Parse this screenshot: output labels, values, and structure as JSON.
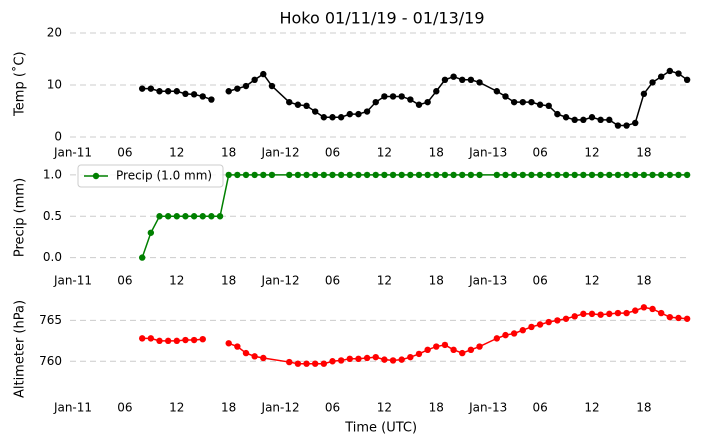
{
  "chart_data": [
    {
      "type": "line",
      "title": "Hoko 01/11/19 - 01/13/19",
      "ylabel": "Temp (˚C)",
      "xlim": [
        0,
        71.25
      ],
      "xticks": [
        {
          "value": 0,
          "label": "Jan-11"
        },
        {
          "value": 6,
          "label": "06"
        },
        12,
        18,
        {
          "value": 24,
          "label": "Jan-12"
        },
        {
          "value": 30,
          "label": "06"
        },
        {
          "value": 36,
          "label": "12"
        },
        {
          "value": 42,
          "label": "18"
        },
        {
          "value": 48,
          "label": "Jan-13"
        },
        {
          "value": 54,
          "label": "06"
        },
        {
          "value": 60,
          "label": "12"
        },
        {
          "value": 66,
          "label": "18"
        }
      ],
      "ylim": [
        0,
        20.5
      ],
      "yticks": [
        0,
        10,
        20
      ],
      "grid": true,
      "series": [
        {
          "name": "Temp",
          "color": "#000000",
          "x": [
            8,
            9,
            10,
            11,
            12,
            13,
            14,
            15,
            16,
            17,
            18,
            19,
            20,
            21,
            22,
            23,
            25,
            26,
            27,
            28,
            29,
            30,
            31,
            32,
            33,
            34,
            35,
            36,
            37,
            38,
            39,
            40,
            41,
            42,
            43,
            44,
            45,
            46,
            47,
            49,
            50,
            51,
            52,
            53,
            54,
            55,
            56,
            57,
            58,
            59,
            60,
            61,
            62,
            63,
            64,
            65,
            66,
            67,
            68,
            69,
            70,
            71
          ],
          "values": [
            9.3,
            9.3,
            8.8,
            8.8,
            8.8,
            8.3,
            8.2,
            7.8,
            7.2,
            null,
            8.8,
            9.3,
            9.8,
            11.0,
            12.1,
            9.8,
            6.7,
            6.2,
            6.0,
            4.9,
            3.8,
            3.8,
            3.8,
            4.4,
            4.4,
            4.9,
            6.7,
            7.8,
            7.8,
            7.8,
            7.2,
            6.2,
            6.7,
            8.8,
            11.0,
            11.6,
            11.0,
            11.0,
            10.5,
            8.8,
            7.8,
            6.7,
            6.7,
            6.7,
            6.2,
            6.0,
            4.4,
            3.8,
            3.3,
            3.3,
            3.8,
            3.3,
            3.3,
            2.2,
            2.2,
            2.7,
            8.3,
            10.5,
            11.6,
            12.7,
            12.2,
            11.0
          ]
        }
      ]
    },
    {
      "type": "line",
      "ylabel": "Precip (mm)",
      "legend": "upper left",
      "xlim": [
        0,
        71.25
      ],
      "xticks": [
        {
          "value": 0,
          "label": "Jan-11"
        },
        {
          "value": 6,
          "label": "06"
        },
        12,
        18,
        {
          "value": 24,
          "label": "Jan-12"
        },
        {
          "value": 30,
          "label": "06"
        },
        {
          "value": 36,
          "label": "12"
        },
        {
          "value": 42,
          "label": "18"
        },
        {
          "value": 48,
          "label": "Jan-13"
        },
        {
          "value": 54,
          "label": "06"
        },
        {
          "value": 60,
          "label": "12"
        },
        {
          "value": 66,
          "label": "18"
        }
      ],
      "ylim": [
        -0.15,
        1.12
      ],
      "yticks": [
        {
          "value": 0,
          "label": "0.0"
        },
        0.5,
        {
          "value": 1,
          "label": "1.0"
        }
      ],
      "grid": true,
      "series": [
        {
          "name": "Precip (1.0 mm)",
          "color": "#008000",
          "x": [
            8,
            9,
            10,
            11,
            12,
            13,
            14,
            15,
            16,
            17,
            18,
            19,
            20,
            21,
            22,
            23,
            25,
            26,
            27,
            28,
            29,
            30,
            31,
            32,
            33,
            34,
            35,
            36,
            37,
            38,
            39,
            40,
            41,
            42,
            43,
            44,
            45,
            46,
            47,
            49,
            50,
            51,
            52,
            53,
            54,
            55,
            56,
            57,
            58,
            59,
            60,
            61,
            62,
            63,
            64,
            65,
            66,
            67,
            68,
            69,
            70,
            71
          ],
          "values": [
            0,
            0.3,
            0.5,
            0.5,
            0.5,
            0.5,
            0.5,
            0.5,
            0.5,
            0.5,
            1,
            1,
            1,
            1,
            1,
            1,
            1,
            1,
            1,
            1,
            1,
            1,
            1,
            1,
            1,
            1,
            1,
            1,
            1,
            1,
            1,
            1,
            1,
            1,
            1,
            1,
            1,
            1,
            1,
            1,
            1,
            1,
            1,
            1,
            1,
            1,
            1,
            1,
            1,
            1,
            1,
            1,
            1,
            1,
            1,
            1,
            1,
            1,
            1,
            1,
            1,
            1
          ]
        }
      ]
    },
    {
      "type": "line",
      "ylabel": "Altimeter (hPa)",
      "xlabel": "Time (UTC)",
      "xlim": [
        0,
        71.25
      ],
      "xticks": [
        {
          "value": 0,
          "label": "Jan-11"
        },
        {
          "value": 6,
          "label": "06"
        },
        12,
        18,
        {
          "value": 24,
          "label": "Jan-12"
        },
        {
          "value": 30,
          "label": "06"
        },
        {
          "value": 36,
          "label": "12"
        },
        {
          "value": 42,
          "label": "18"
        },
        {
          "value": 48,
          "label": "Jan-13"
        },
        {
          "value": 54,
          "label": "06"
        },
        {
          "value": 60,
          "label": "12"
        },
        {
          "value": 66,
          "label": "18"
        }
      ],
      "ylim": [
        755.5,
        767.5
      ],
      "yticks": [
        760,
        765
      ],
      "grid": true,
      "series": [
        {
          "name": "Altimeter",
          "color": "#ff0000",
          "x": [
            8,
            9,
            10,
            11,
            12,
            13,
            14,
            15,
            16,
            18,
            19,
            20,
            21,
            22,
            25,
            26,
            27,
            28,
            29,
            30,
            31,
            32,
            33,
            34,
            35,
            36,
            37,
            38,
            39,
            40,
            41,
            42,
            43,
            44,
            45,
            46,
            47,
            49,
            50,
            51,
            52,
            53,
            54,
            55,
            56,
            57,
            58,
            59,
            60,
            61,
            62,
            63,
            64,
            65,
            66,
            67,
            68,
            69,
            70,
            71
          ],
          "values": [
            762.8,
            762.8,
            762.5,
            762.5,
            762.5,
            762.6,
            762.6,
            762.7,
            null,
            762.2,
            761.8,
            761.0,
            760.6,
            760.4,
            759.9,
            759.7,
            759.7,
            759.7,
            759.7,
            760.0,
            760.1,
            760.3,
            760.3,
            760.4,
            760.5,
            760.2,
            760.1,
            760.2,
            760.5,
            760.9,
            761.4,
            761.8,
            762.0,
            761.4,
            761.0,
            761.4,
            761.8,
            762.8,
            763.2,
            763.4,
            763.8,
            764.2,
            764.5,
            764.8,
            765.0,
            765.2,
            765.5,
            765.8,
            765.8,
            765.7,
            765.8,
            765.9,
            765.9,
            766.2,
            766.6,
            766.4,
            765.9,
            765.4,
            765.3,
            765.2
          ]
        }
      ]
    }
  ]
}
